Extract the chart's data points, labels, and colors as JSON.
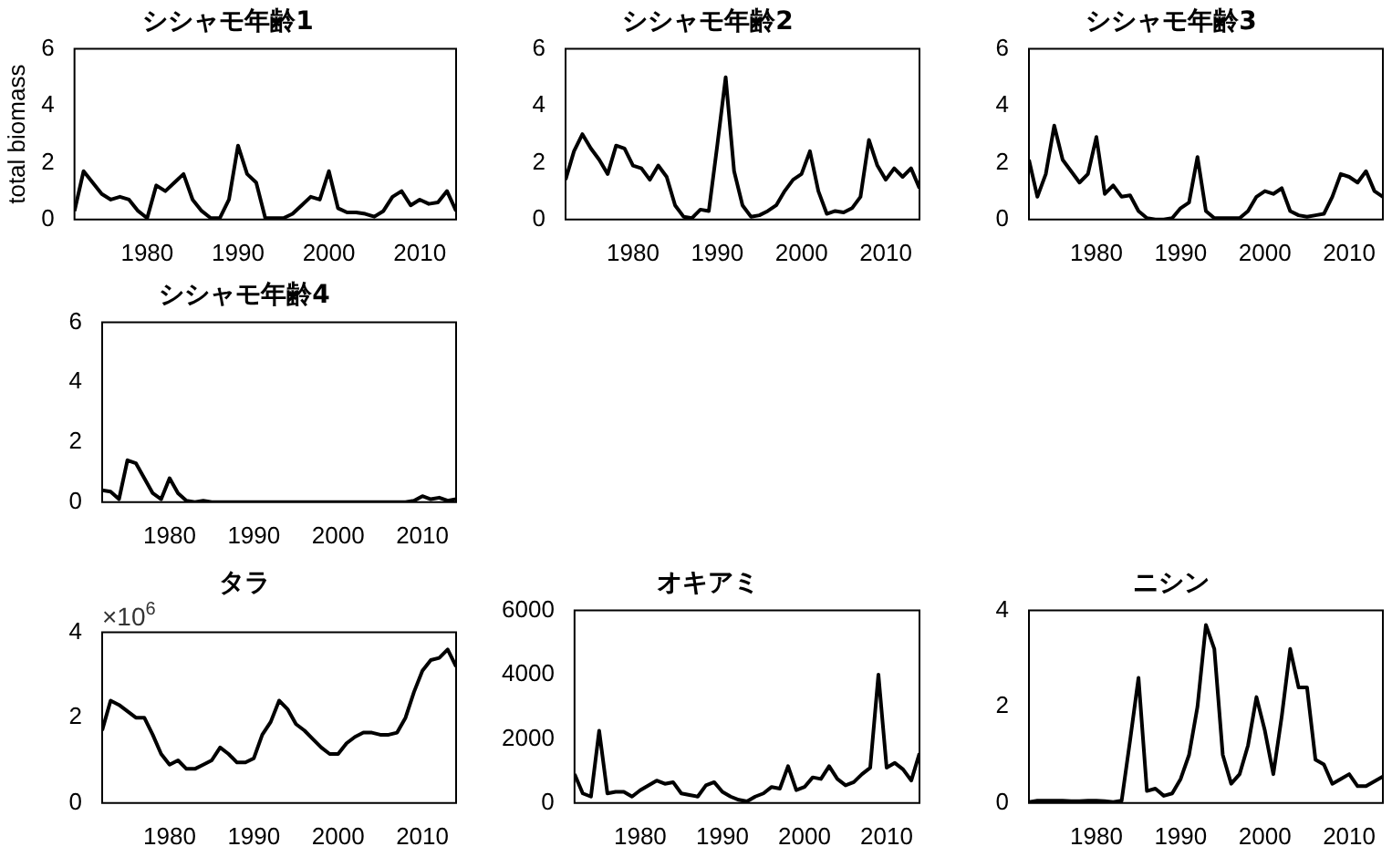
{
  "chart_data": [
    {
      "type": "line",
      "title": "シシャモ年齢1",
      "ylabel": "total biomass",
      "xlim": [
        1972,
        2014
      ],
      "xticks": [
        1980,
        1990,
        2000,
        2010
      ],
      "ylim": [
        0,
        6
      ],
      "yticks": [
        0,
        2,
        4,
        6
      ],
      "x": [
        1972,
        1973,
        1974,
        1975,
        1976,
        1977,
        1978,
        1979,
        1980,
        1981,
        1982,
        1983,
        1984,
        1985,
        1986,
        1987,
        1988,
        1989,
        1990,
        1991,
        1992,
        1993,
        1994,
        1995,
        1996,
        1997,
        1998,
        1999,
        2000,
        2001,
        2002,
        2003,
        2004,
        2005,
        2006,
        2007,
        2008,
        2009,
        2010,
        2011,
        2012,
        2013,
        2014
      ],
      "series": [
        {
          "color": "#000000",
          "values": [
            0.3,
            1.7,
            1.3,
            0.9,
            0.7,
            0.8,
            0.7,
            0.3,
            0.05,
            1.2,
            1.0,
            1.3,
            1.6,
            0.7,
            0.3,
            0.05,
            0.05,
            0.7,
            2.6,
            1.6,
            1.3,
            0.05,
            0.05,
            0.05,
            0.2,
            0.5,
            0.8,
            0.7,
            1.7,
            0.4,
            0.25,
            0.25,
            0.2,
            0.1,
            0.3,
            0.8,
            1.0,
            0.5,
            0.7,
            0.55,
            0.6,
            1.0,
            0.3
          ]
        }
      ]
    },
    {
      "type": "line",
      "title": "シシャモ年齢2",
      "xlim": [
        1972,
        2014
      ],
      "xticks": [
        1980,
        1990,
        2000,
        2010
      ],
      "ylim": [
        0,
        6
      ],
      "yticks": [
        0,
        2,
        4,
        6
      ],
      "x": [
        1972,
        1973,
        1974,
        1975,
        1976,
        1977,
        1978,
        1979,
        1980,
        1981,
        1982,
        1983,
        1984,
        1985,
        1986,
        1987,
        1988,
        1989,
        1990,
        1991,
        1992,
        1993,
        1994,
        1995,
        1996,
        1997,
        1998,
        1999,
        2000,
        2001,
        2002,
        2003,
        2004,
        2005,
        2006,
        2007,
        2008,
        2009,
        2010,
        2011,
        2012,
        2013,
        2014
      ],
      "series": [
        {
          "color": "#000000",
          "values": [
            1.4,
            2.4,
            3.0,
            2.5,
            2.1,
            1.6,
            2.6,
            2.5,
            1.9,
            1.8,
            1.4,
            1.9,
            1.5,
            0.5,
            0.1,
            0.05,
            0.35,
            0.3,
            2.6,
            5.0,
            1.7,
            0.5,
            0.1,
            0.15,
            0.3,
            0.5,
            1.0,
            1.4,
            1.6,
            2.4,
            1.0,
            0.2,
            0.3,
            0.25,
            0.4,
            0.8,
            2.8,
            1.9,
            1.4,
            1.8,
            1.5,
            1.8,
            1.1
          ]
        }
      ]
    },
    {
      "type": "line",
      "title": "シシャモ年齢3",
      "xlim": [
        1972,
        2014
      ],
      "xticks": [
        1980,
        1990,
        2000,
        2010
      ],
      "ylim": [
        0,
        6
      ],
      "yticks": [
        0,
        2,
        4,
        6
      ],
      "x": [
        1972,
        1973,
        1974,
        1975,
        1976,
        1977,
        1978,
        1979,
        1980,
        1981,
        1982,
        1983,
        1984,
        1985,
        1986,
        1987,
        1988,
        1989,
        1990,
        1991,
        1992,
        1993,
        1994,
        1995,
        1996,
        1997,
        1998,
        1999,
        2000,
        2001,
        2002,
        2003,
        2004,
        2005,
        2006,
        2007,
        2008,
        2009,
        2010,
        2011,
        2012,
        2013,
        2014
      ],
      "series": [
        {
          "color": "#000000",
          "values": [
            2.1,
            0.8,
            1.6,
            3.3,
            2.1,
            1.7,
            1.3,
            1.6,
            2.9,
            0.9,
            1.2,
            0.8,
            0.85,
            0.3,
            0.05,
            0,
            0,
            0.05,
            0.4,
            0.6,
            2.2,
            0.3,
            0.05,
            0.05,
            0.05,
            0.05,
            0.3,
            0.8,
            1.0,
            0.9,
            1.1,
            0.3,
            0.15,
            0.1,
            0.15,
            0.2,
            0.8,
            1.6,
            1.5,
            1.3,
            1.7,
            1.0,
            0.8
          ]
        }
      ]
    },
    {
      "type": "line",
      "title": "シシャモ年齢4",
      "xlim": [
        1972,
        2014
      ],
      "xticks": [
        1980,
        1990,
        2000,
        2010
      ],
      "ylim": [
        0,
        6
      ],
      "yticks": [
        0,
        2,
        4,
        6
      ],
      "x": [
        1972,
        1973,
        1974,
        1975,
        1976,
        1977,
        1978,
        1979,
        1980,
        1981,
        1982,
        1983,
        1984,
        1985,
        1986,
        1987,
        1988,
        1989,
        1990,
        1991,
        1992,
        1993,
        1994,
        1995,
        1996,
        1997,
        1998,
        1999,
        2000,
        2001,
        2002,
        2003,
        2004,
        2005,
        2006,
        2007,
        2008,
        2009,
        2010,
        2011,
        2012,
        2013,
        2014
      ],
      "series": [
        {
          "color": "#000000",
          "values": [
            0.4,
            0.35,
            0.1,
            1.4,
            1.3,
            0.8,
            0.3,
            0.1,
            0.8,
            0.3,
            0.05,
            0,
            0.05,
            0,
            0,
            0,
            0,
            0,
            0,
            0,
            0,
            0,
            0,
            0,
            0,
            0,
            0,
            0,
            0,
            0,
            0,
            0,
            0,
            0,
            0,
            0,
            0,
            0.05,
            0.2,
            0.1,
            0.15,
            0.05,
            0.1
          ]
        }
      ]
    },
    {
      "type": "line",
      "title": "タラ",
      "annotations": [
        "×10$^{6}$"
      ],
      "xlim": [
        1972,
        2014
      ],
      "xticks": [
        1980,
        1990,
        2000,
        2010
      ],
      "ylim": [
        0,
        4
      ],
      "yticks": [
        0,
        2,
        4
      ],
      "x": [
        1972,
        1973,
        1974,
        1975,
        1976,
        1977,
        1978,
        1979,
        1980,
        1981,
        1982,
        1983,
        1984,
        1985,
        1986,
        1987,
        1988,
        1989,
        1990,
        1991,
        1992,
        1993,
        1994,
        1995,
        1996,
        1997,
        1998,
        1999,
        2000,
        2001,
        2002,
        2003,
        2004,
        2005,
        2006,
        2007,
        2008,
        2009,
        2010,
        2011,
        2012,
        2013,
        2014
      ],
      "series": [
        {
          "color": "#000000",
          "values": [
            1.7,
            2.4,
            2.3,
            2.15,
            2.0,
            2.0,
            1.6,
            1.15,
            0.9,
            1.0,
            0.8,
            0.8,
            0.9,
            1.0,
            1.3,
            1.15,
            0.95,
            0.95,
            1.05,
            1.6,
            1.9,
            2.4,
            2.2,
            1.85,
            1.7,
            1.5,
            1.3,
            1.15,
            1.15,
            1.4,
            1.55,
            1.65,
            1.65,
            1.6,
            1.6,
            1.65,
            2.0,
            2.6,
            3.1,
            3.35,
            3.4,
            3.6,
            3.2
          ]
        }
      ]
    },
    {
      "type": "line",
      "title": "オキアミ",
      "xlim": [
        1972,
        2014
      ],
      "xticks": [
        1980,
        1990,
        2000,
        2010
      ],
      "ylim": [
        0,
        6000
      ],
      "yticks": [
        0,
        2000,
        4000,
        6000
      ],
      "x": [
        1972,
        1973,
        1974,
        1975,
        1976,
        1977,
        1978,
        1979,
        1980,
        1981,
        1982,
        1983,
        1984,
        1985,
        1986,
        1987,
        1988,
        1989,
        1990,
        1991,
        1992,
        1993,
        1994,
        1995,
        1996,
        1997,
        1998,
        1999,
        2000,
        2001,
        2002,
        2003,
        2004,
        2005,
        2006,
        2007,
        2008,
        2009,
        2010,
        2011,
        2012,
        2013,
        2014
      ],
      "series": [
        {
          "color": "#000000",
          "values": [
            900,
            300,
            200,
            2250,
            300,
            350,
            350,
            200,
            400,
            550,
            700,
            600,
            650,
            300,
            250,
            200,
            550,
            650,
            350,
            200,
            100,
            50,
            200,
            300,
            500,
            450,
            1150,
            400,
            500,
            800,
            750,
            1150,
            750,
            550,
            650,
            900,
            1100,
            4000,
            1100,
            1250,
            1050,
            700,
            1550
          ]
        }
      ]
    },
    {
      "type": "line",
      "title": "ニシン",
      "xlim": [
        1972,
        2014
      ],
      "xticks": [
        1980,
        1990,
        2000,
        2010
      ],
      "ylim": [
        0,
        4
      ],
      "yticks": [
        0,
        2,
        4
      ],
      "x": [
        1972,
        1973,
        1974,
        1975,
        1976,
        1977,
        1978,
        1979,
        1980,
        1981,
        1982,
        1983,
        1984,
        1985,
        1986,
        1987,
        1988,
        1989,
        1990,
        1991,
        1992,
        1993,
        1994,
        1995,
        1996,
        1997,
        1998,
        1999,
        2000,
        2001,
        2002,
        2003,
        2004,
        2005,
        2006,
        2007,
        2008,
        2009,
        2010,
        2011,
        2012,
        2013,
        2014
      ],
      "series": [
        {
          "color": "#000000",
          "values": [
            0.02,
            0.05,
            0.05,
            0.05,
            0.05,
            0.04,
            0.04,
            0.05,
            0.05,
            0.04,
            0.02,
            0.05,
            1.3,
            2.6,
            0.25,
            0.3,
            0.15,
            0.2,
            0.5,
            1.0,
            2.0,
            3.7,
            3.2,
            1.0,
            0.4,
            0.6,
            1.2,
            2.2,
            1.5,
            0.6,
            1.8,
            3.2,
            2.4,
            2.4,
            0.9,
            0.8,
            0.4,
            0.5,
            0.6,
            0.35,
            0.35,
            0.45,
            0.55
          ]
        }
      ]
    }
  ]
}
